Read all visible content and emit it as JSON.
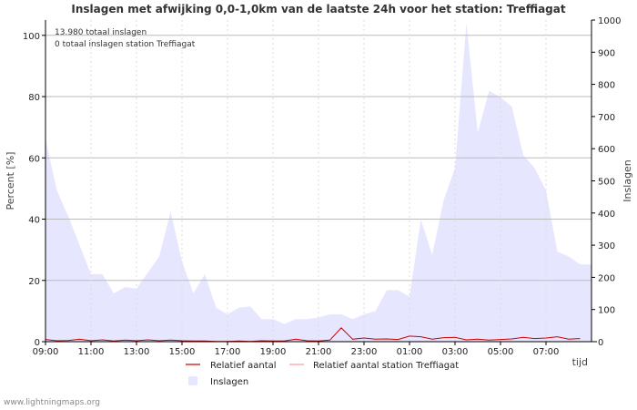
{
  "chart_data": {
    "type": "area",
    "title": "Inslagen met afwijking 0,0-1,0km van de laatste 24h voor het station: Treffiagat",
    "xlabel": "tijd",
    "ylabel_left": "Percent   [%]",
    "ylabel_right": "Inslagen",
    "ylim_left": [
      0,
      105
    ],
    "ylim_right": [
      0,
      1000
    ],
    "x_ticks": [
      "09:00",
      "11:00",
      "13:00",
      "15:00",
      "17:00",
      "19:00",
      "21:00",
      "23:00",
      "01:00",
      "03:00",
      "05:00",
      "07:00"
    ],
    "y_ticks_left": [
      0,
      20,
      40,
      60,
      80,
      100
    ],
    "y_ticks_right": [
      0,
      100,
      200,
      300,
      400,
      500,
      600,
      700,
      800,
      900,
      1000
    ],
    "grid": true,
    "annotations": [
      "13.980 totaal inslagen",
      "0 totaal inslagen station Treffiagat"
    ],
    "x_hours": [
      0,
      0.5,
      1,
      1.5,
      2,
      2.5,
      3,
      3.5,
      4,
      4.5,
      5,
      5.5,
      6,
      6.5,
      7,
      7.5,
      8,
      8.5,
      9,
      9.5,
      10,
      10.5,
      11,
      11.5,
      12,
      12.5,
      13,
      13.5,
      14,
      14.5,
      15,
      15.5,
      16,
      16.5,
      17,
      17.5,
      18,
      18.5,
      19,
      19.5,
      20,
      20.5,
      21,
      21.5,
      22,
      22.5,
      23,
      23.5
    ],
    "series": [
      {
        "name": "Inslagen",
        "axis": "right",
        "color": "#e6e6ff",
        "values": [
          630,
          470,
          390,
          300,
          210,
          210,
          150,
          170,
          165,
          215,
          265,
          405,
          250,
          150,
          210,
          105,
          85,
          105,
          110,
          70,
          70,
          55,
          70,
          70,
          75,
          85,
          85,
          70,
          85,
          95,
          160,
          160,
          140,
          380,
          270,
          440,
          540,
          990,
          650,
          780,
          760,
          730,
          580,
          540,
          470,
          280,
          265,
          240
        ]
      },
      {
        "name": "Relatief aantal",
        "axis": "left",
        "color": "#cc0000",
        "values": [
          0.7,
          0.3,
          0.4,
          0.8,
          0.3,
          0.6,
          0.2,
          0.5,
          0.3,
          0.6,
          0.3,
          0.5,
          0.3,
          0.2,
          0.2,
          0.1,
          0.1,
          0.2,
          0.1,
          0.3,
          0.2,
          0.2,
          0.8,
          0.3,
          0.2,
          0.5,
          4.5,
          0.8,
          1.2,
          0.8,
          0.9,
          0.7,
          1.8,
          1.6,
          0.8,
          1.3,
          1.4,
          0.6,
          0.8,
          0.5,
          0.7,
          0.9,
          1.4,
          1.0,
          1.2,
          1.6,
          0.8,
          1.0
        ]
      },
      {
        "name": "Relatief aantal station Treffiagat",
        "axis": "left",
        "color": "#ff9999",
        "values": [
          0,
          0,
          0,
          0,
          0,
          0,
          0,
          0,
          0,
          0,
          0,
          0,
          0,
          0,
          0,
          0,
          0,
          0,
          0,
          0,
          0,
          0,
          0,
          0,
          0,
          0,
          0,
          0,
          0,
          0,
          0,
          0,
          0,
          0,
          0,
          0,
          0,
          0,
          0,
          0,
          0,
          0,
          0,
          0,
          0,
          0,
          0,
          0
        ]
      }
    ],
    "legend": [
      {
        "label": "Relatief aantal",
        "kind": "line",
        "color": "#cc0000"
      },
      {
        "label": "Relatief aantal station Treffiagat",
        "kind": "line",
        "color": "#ff9999"
      },
      {
        "label": "Inslagen",
        "kind": "area",
        "color": "#e6e6ff"
      }
    ]
  },
  "footer": "www.lightningmaps.org"
}
